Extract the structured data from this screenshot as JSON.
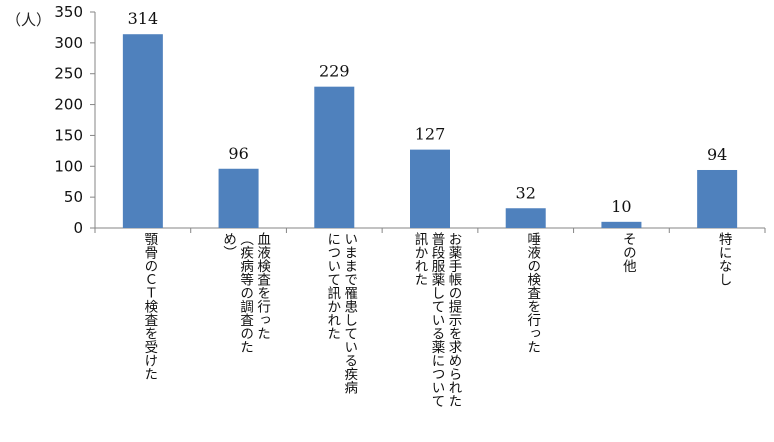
{
  "chart_data": {
    "type": "bar",
    "unit_label": "（人）",
    "y_ticks": [
      "0",
      "50",
      "100",
      "150",
      "200",
      "250",
      "300",
      "350"
    ],
    "ylim": [
      0,
      350
    ],
    "grid": false,
    "bar_color": "#4f81bd",
    "categories": [
      "顎骨のＣＴ検査を受けた",
      "血液検査を行った\n（疾病等の調査のた\nめ）",
      "いままで罹患している疾病\nについて訊かれた",
      "お薬手帳の提示を求められた\n普段服薬している薬について\n訊かれた",
      "唾液の検査を行った",
      "その他",
      "特になし"
    ],
    "values": [
      314,
      96,
      229,
      127,
      32,
      10,
      94
    ],
    "data_labels": [
      "314",
      "96",
      "229",
      "127",
      "32",
      "10",
      "94"
    ]
  }
}
